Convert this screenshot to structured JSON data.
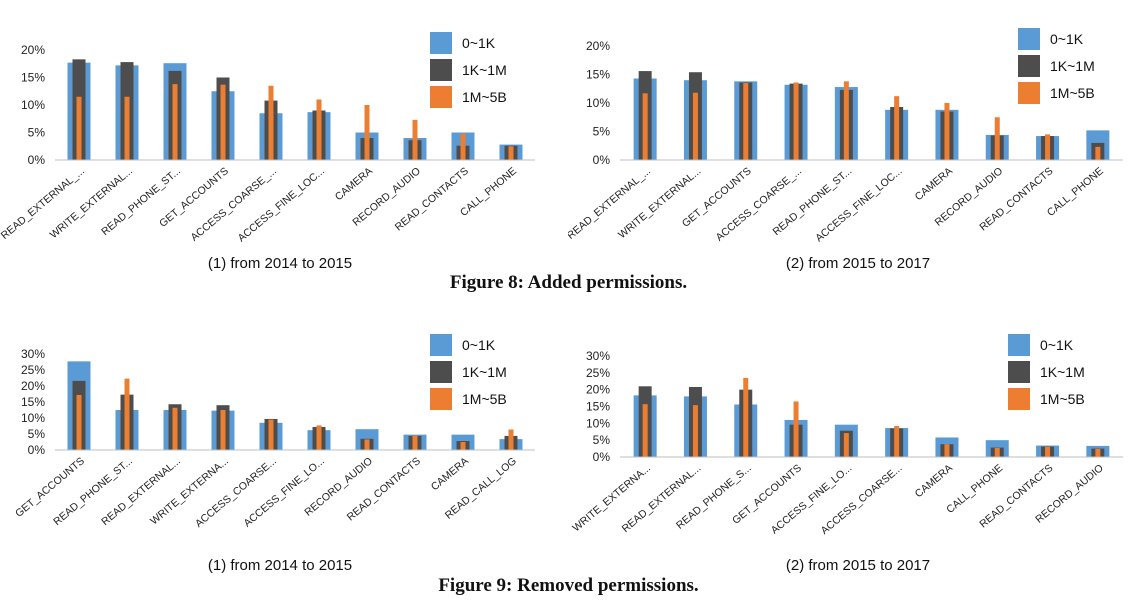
{
  "figures": [
    {
      "caption": "Figure 8: Added permissions."
    },
    {
      "caption": "Figure 9: Removed permissions."
    }
  ],
  "colors": {
    "0~1K": "#5b9bd5",
    "1K~1M": "#4d4d4d",
    "1M~5B": "#ed7d31",
    "axis": "#bfbfbf"
  },
  "chart_data": [
    {
      "type": "bar",
      "figure": 0,
      "subtitle": "(1) from 2014 to 2015",
      "categories": [
        "READ_EXTERNAL_...",
        "WRITE_EXTERNAL...",
        "READ_PHONE_ST...",
        "GET_ACCOUNTS",
        "ACCESS_COARSE_...",
        "ACCESS_FINE_LOC...",
        "CAMERA",
        "RECORD_AUDIO",
        "READ_CONTACTS",
        "CALL_PHONE"
      ],
      "series": [
        {
          "name": "0~1K",
          "values": [
            17.7,
            17.2,
            17.6,
            12.5,
            8.5,
            8.7,
            5.0,
            4.0,
            5.0,
            2.8
          ]
        },
        {
          "name": "1K~1M",
          "values": [
            18.3,
            17.8,
            16.2,
            15.0,
            10.8,
            9.0,
            4.0,
            3.6,
            2.6,
            2.6
          ]
        },
        {
          "name": "1M~5B",
          "values": [
            11.5,
            11.5,
            13.8,
            13.7,
            13.5,
            11.0,
            10.0,
            7.3,
            4.8,
            2.5
          ]
        }
      ],
      "ylim": [
        0,
        20
      ],
      "yticks": [
        "0%",
        "5%",
        "10%",
        "15%",
        "20%"
      ],
      "legend": "top-right"
    },
    {
      "type": "bar",
      "figure": 0,
      "subtitle": "(2) from 2015 to 2017",
      "categories": [
        "READ_EXTERNAL_...",
        "WRITE_EXTERNAL...",
        "GET_ACCOUNTS",
        "ACCESS_COARSE_...",
        "READ_PHONE_ST...",
        "ACCESS_FINE_LOC...",
        "CAMERA",
        "RECORD_AUDIO",
        "READ_CONTACTS",
        "CALL_PHONE"
      ],
      "series": [
        {
          "name": "0~1K",
          "values": [
            14.3,
            14.0,
            13.8,
            13.2,
            12.8,
            8.8,
            8.8,
            4.4,
            4.2,
            5.2
          ]
        },
        {
          "name": "1K~1M",
          "values": [
            15.6,
            15.4,
            13.6,
            13.4,
            12.3,
            9.3,
            8.5,
            4.3,
            4.2,
            3.0
          ]
        },
        {
          "name": "1M~5B",
          "values": [
            11.7,
            11.8,
            13.5,
            13.6,
            13.8,
            11.2,
            10.0,
            7.5,
            4.5,
            2.3
          ]
        }
      ],
      "ylim": [
        0,
        20
      ],
      "yticks": [
        "0%",
        "5%",
        "10%",
        "15%",
        "20%"
      ],
      "legend": "top-right"
    },
    {
      "type": "bar",
      "figure": 1,
      "subtitle": "(1) from 2014 to 2015",
      "categories": [
        "GET_ACCOUNTS",
        "READ_PHONE_ST...",
        "READ_EXTERNAL...",
        "WRITE_EXTERNA...",
        "ACCESS_COARSE...",
        "ACCESS_FINE_LO...",
        "RECORD_AUDIO",
        "READ_CONTACTS",
        "CAMERA",
        "READ_CALL_LOG"
      ],
      "series": [
        {
          "name": "0~1K",
          "values": [
            27.7,
            12.5,
            12.5,
            12.3,
            8.5,
            6.2,
            6.5,
            4.8,
            4.8,
            3.4
          ]
        },
        {
          "name": "1K~1M",
          "values": [
            21.6,
            17.3,
            14.3,
            14.0,
            9.7,
            7.2,
            3.5,
            4.4,
            2.8,
            4.4
          ]
        },
        {
          "name": "1M~5B",
          "values": [
            17.2,
            22.3,
            13.2,
            12.5,
            9.5,
            7.7,
            3.3,
            4.5,
            2.5,
            6.4
          ]
        }
      ],
      "ylim": [
        0,
        30
      ],
      "yticks": [
        "0%",
        "5%",
        "10%",
        "15%",
        "20%",
        "25%",
        "30%"
      ],
      "legend": "top-right"
    },
    {
      "type": "bar",
      "figure": 1,
      "subtitle": "(2) from 2015 to 2017",
      "categories": [
        "WRITE_EXTERNA...",
        "READ_EXTERNAL...",
        "READ_PHONE_S...",
        "GET_ACCOUNTS",
        "ACCESS_FINE_LO...",
        "ACCESS_COARSE...",
        "CAMERA",
        "CALL_PHONE",
        "READ_CONTACTS",
        "RECORD_AUDIO"
      ],
      "series": [
        {
          "name": "0~1K",
          "values": [
            18.3,
            18.0,
            15.6,
            11.0,
            9.6,
            8.6,
            5.8,
            5.0,
            3.4,
            3.3
          ]
        },
        {
          "name": "1K~1M",
          "values": [
            21.0,
            20.8,
            20.0,
            9.6,
            7.8,
            8.5,
            3.8,
            2.8,
            3.1,
            2.5
          ]
        },
        {
          "name": "1M~5B",
          "values": [
            15.7,
            15.4,
            23.5,
            16.5,
            7.1,
            9.2,
            3.8,
            2.7,
            3.0,
            2.4
          ]
        }
      ],
      "ylim": [
        0,
        30
      ],
      "yticks": [
        "0%",
        "5%",
        "10%",
        "15%",
        "20%",
        "25%",
        "30%"
      ],
      "legend": "top-right"
    }
  ]
}
